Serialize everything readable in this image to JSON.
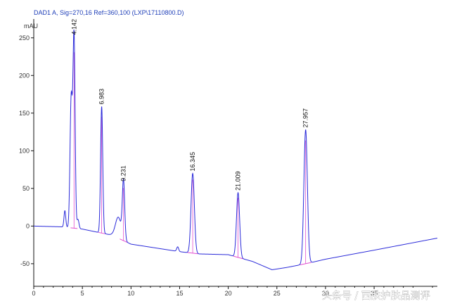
{
  "header": {
    "signal_title": "DAD1 A, Sig=270,16 Ref=360,100 (LXP\\17110800.D)"
  },
  "watermark": "头条号 / 西肤护肤品测评",
  "chart_data": {
    "type": "line",
    "title": "DAD1 A, Sig=270,16 Ref=360,100 (LXP\\17110800.D)",
    "ylabel": "mAU",
    "xlabel": "",
    "xlim": [
      0,
      41.5
    ],
    "ylim": [
      -80,
      275
    ],
    "x_ticks": [
      0,
      5,
      10,
      15,
      20,
      25,
      30,
      35
    ],
    "x_tick_labels": [
      "0",
      "5",
      "10",
      "15",
      "20",
      "25",
      "30",
      "35"
    ],
    "y_ticks": [
      -50,
      0,
      50,
      100,
      150,
      200,
      250
    ],
    "y_tick_labels": [
      "-50",
      "0",
      "50",
      "100",
      "150",
      "200",
      "250"
    ],
    "grid": false,
    "colors": {
      "trace": "#2a2ad9",
      "baseline": "#e24fd0",
      "axis": "#111111",
      "header": "#1f3fb8"
    },
    "baseline_points": [
      {
        "x": 0,
        "y": 0
      },
      {
        "x": 2.8,
        "y": -1
      },
      {
        "x": 5,
        "y": -4
      },
      {
        "x": 8,
        "y": -12
      },
      {
        "x": 10,
        "y": -24
      },
      {
        "x": 13,
        "y": -30
      },
      {
        "x": 15,
        "y": -34
      },
      {
        "x": 17,
        "y": -37
      },
      {
        "x": 20,
        "y": -38
      },
      {
        "x": 22.5,
        "y": -47
      },
      {
        "x": 24.5,
        "y": -58
      },
      {
        "x": 26,
        "y": -55
      },
      {
        "x": 28,
        "y": -50
      },
      {
        "x": 30,
        "y": -44
      },
      {
        "x": 35,
        "y": -32
      },
      {
        "x": 41.5,
        "y": -16
      }
    ],
    "peaks": [
      {
        "rt": 3.2,
        "height": 22,
        "width": 0.09,
        "label": ""
      },
      {
        "rt": 3.85,
        "height": 172,
        "width": 0.12,
        "label": ""
      },
      {
        "rt": 4.142,
        "height": 254,
        "width": 0.11,
        "label": "4.142"
      },
      {
        "rt": 4.55,
        "height": 12,
        "width": 0.1,
        "label": ""
      },
      {
        "rt": 6.983,
        "height": 168,
        "width": 0.11,
        "label": "6.983"
      },
      {
        "rt": 8.7,
        "height": 28,
        "width": 0.3,
        "label": ""
      },
      {
        "rt": 9.231,
        "height": 76,
        "width": 0.12,
        "label": "9.231"
      },
      {
        "rt": 14.8,
        "height": 6,
        "width": 0.1,
        "label": ""
      },
      {
        "rt": 16.345,
        "height": 106,
        "width": 0.17,
        "label": "16.345"
      },
      {
        "rt": 21.009,
        "height": 86,
        "width": 0.16,
        "label": "21.009"
      },
      {
        "rt": 27.957,
        "height": 178,
        "width": 0.18,
        "label": "27.957"
      }
    ]
  }
}
